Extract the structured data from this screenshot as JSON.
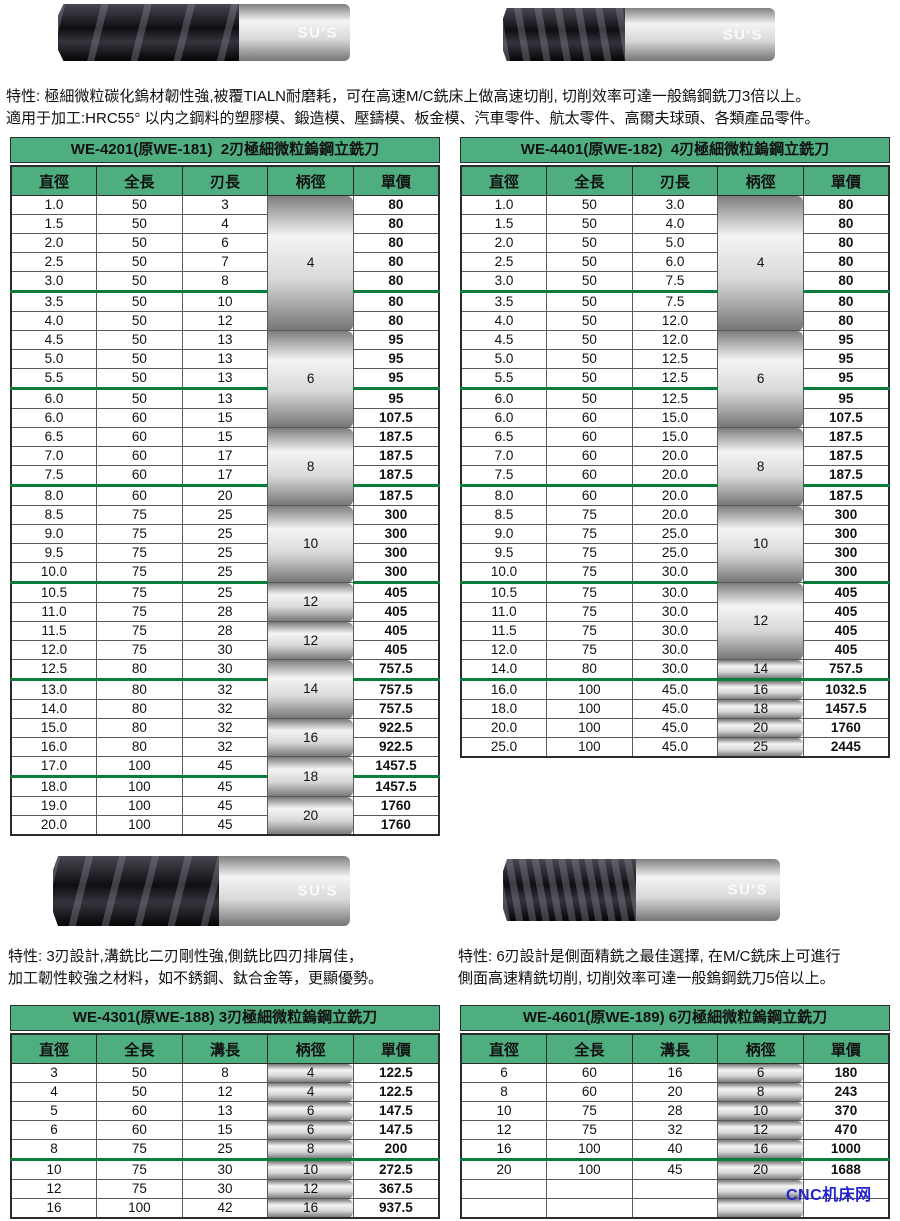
{
  "features": {
    "top": [
      "特性: 極細微粒碳化鎢材韌性強,被覆TIALN耐磨耗，可在高速M/C銑床上做高速切削, 切削效率可達一般鎢鋼銑刀3倍以上。",
      "適用于加工:HRC55° 以内之鋼料的塑膠模、鍛造模、壓鑄模、板金模、汽車零件、航太零件、高爾夫球頭、各類產品零件。"
    ],
    "three_flute": [
      "特性: 3刃設計,溝銑比二刃剛性強,側銑比四刃排屑佳，",
      "加工韌性較強之材料，如不銹鋼、鈦合金等，更顯優勢。"
    ],
    "six_flute": [
      "特性: 6刃設計是側面精銑之最佳選擇, 在M/C銑床上可進行",
      "側面高速精銑切削, 切削效率可達一般鎢鋼銑刀5倍以上。"
    ]
  },
  "images": [
    {
      "name": "2-flute-endmill",
      "watermark": "SU'S"
    },
    {
      "name": "4-flute-endmill",
      "watermark": "SU'S"
    },
    {
      "name": "3-flute-endmill",
      "watermark": "SU'S"
    },
    {
      "name": "6-flute-endmill",
      "watermark": "SU'S"
    }
  ],
  "colors": {
    "header_green": "#4fae80",
    "separator_green": "#0a7c3c",
    "logo_blue": "#2424cf"
  },
  "footer_logo": "CNC机床网",
  "tables": [
    {
      "title": "WE-4201(原WE-181)  2刃極細微粒鎢鋼立銑刀",
      "columns": [
        "直徑",
        "全長",
        "刃長",
        "柄徑",
        "單價"
      ],
      "rows": [
        {
          "cells": [
            "1.0",
            "50",
            "3"
          ],
          "shank": "4",
          "shank_span": 7,
          "price": "80"
        },
        {
          "cells": [
            "1.5",
            "50",
            "4"
          ],
          "price": "80"
        },
        {
          "cells": [
            "2.0",
            "50",
            "6"
          ],
          "price": "80"
        },
        {
          "cells": [
            "2.5",
            "50",
            "7"
          ],
          "price": "80"
        },
        {
          "cells": [
            "3.0",
            "50",
            "8"
          ],
          "price": "80",
          "sep": true
        },
        {
          "cells": [
            "3.5",
            "50",
            "10"
          ],
          "price": "80"
        },
        {
          "cells": [
            "4.0",
            "50",
            "12"
          ],
          "price": "80"
        },
        {
          "cells": [
            "4.5",
            "50",
            "13"
          ],
          "shank": "6",
          "shank_span": 5,
          "price": "95"
        },
        {
          "cells": [
            "5.0",
            "50",
            "13"
          ],
          "price": "95"
        },
        {
          "cells": [
            "5.5",
            "50",
            "13"
          ],
          "price": "95",
          "sep": true
        },
        {
          "cells": [
            "6.0",
            "50",
            "13"
          ],
          "price": "95"
        },
        {
          "cells": [
            "6.0",
            "60",
            "15"
          ],
          "price": "107.5"
        },
        {
          "cells": [
            "6.5",
            "60",
            "15"
          ],
          "shank": "8",
          "shank_span": 4,
          "price": "187.5"
        },
        {
          "cells": [
            "7.0",
            "60",
            "17"
          ],
          "price": "187.5"
        },
        {
          "cells": [
            "7.5",
            "60",
            "17"
          ],
          "price": "187.5",
          "sep": true
        },
        {
          "cells": [
            "8.0",
            "60",
            "20"
          ],
          "price": "187.5"
        },
        {
          "cells": [
            "8.5",
            "75",
            "25"
          ],
          "shank": "10",
          "shank_span": 4,
          "price": "300"
        },
        {
          "cells": [
            "9.0",
            "75",
            "25"
          ],
          "price": "300"
        },
        {
          "cells": [
            "9.5",
            "75",
            "25"
          ],
          "price": "300"
        },
        {
          "cells": [
            "10.0",
            "75",
            "25"
          ],
          "price": "300",
          "sep": true
        },
        {
          "cells": [
            "10.5",
            "75",
            "25"
          ],
          "shank": "12",
          "shank_span": 2,
          "price": "405"
        },
        {
          "cells": [
            "11.0",
            "75",
            "28"
          ],
          "price": "405"
        },
        {
          "cells": [
            "11.5",
            "75",
            "28"
          ],
          "shank": "12",
          "shank_span": 2,
          "price": "405"
        },
        {
          "cells": [
            "12.0",
            "75",
            "30"
          ],
          "price": "405"
        },
        {
          "cells": [
            "12.5",
            "80",
            "30"
          ],
          "shank": "14",
          "shank_span": 3,
          "price": "757.5",
          "sep": true
        },
        {
          "cells": [
            "13.0",
            "80",
            "32"
          ],
          "price": "757.5"
        },
        {
          "cells": [
            "14.0",
            "80",
            "32"
          ],
          "price": "757.5"
        },
        {
          "cells": [
            "15.0",
            "80",
            "32"
          ],
          "shank": "16",
          "shank_span": 2,
          "price": "922.5"
        },
        {
          "cells": [
            "16.0",
            "80",
            "32"
          ],
          "price": "922.5"
        },
        {
          "cells": [
            "17.0",
            "100",
            "45"
          ],
          "shank": "18",
          "shank_span": 2,
          "price": "1457.5",
          "sep": true
        },
        {
          "cells": [
            "18.0",
            "100",
            "45"
          ],
          "price": "1457.5"
        },
        {
          "cells": [
            "19.0",
            "100",
            "45"
          ],
          "shank": "20",
          "shank_span": 2,
          "price": "1760"
        },
        {
          "cells": [
            "20.0",
            "100",
            "45"
          ],
          "price": "1760"
        }
      ]
    },
    {
      "title": "WE-4401(原WE-182)  4刃極細微粒鎢鋼立銑刀",
      "columns": [
        "直徑",
        "全長",
        "刃長",
        "柄徑",
        "單價"
      ],
      "rows": [
        {
          "cells": [
            "1.0",
            "50",
            "3.0"
          ],
          "shank": "4",
          "shank_span": 7,
          "price": "80"
        },
        {
          "cells": [
            "1.5",
            "50",
            "4.0"
          ],
          "price": "80"
        },
        {
          "cells": [
            "2.0",
            "50",
            "5.0"
          ],
          "price": "80"
        },
        {
          "cells": [
            "2.5",
            "50",
            "6.0"
          ],
          "price": "80"
        },
        {
          "cells": [
            "3.0",
            "50",
            "7.5"
          ],
          "price": "80",
          "sep": true
        },
        {
          "cells": [
            "3.5",
            "50",
            "7.5"
          ],
          "price": "80"
        },
        {
          "cells": [
            "4.0",
            "50",
            "12.0"
          ],
          "price": "80"
        },
        {
          "cells": [
            "4.5",
            "50",
            "12.0"
          ],
          "shank": "6",
          "shank_span": 5,
          "price": "95"
        },
        {
          "cells": [
            "5.0",
            "50",
            "12.5"
          ],
          "price": "95"
        },
        {
          "cells": [
            "5.5",
            "50",
            "12.5"
          ],
          "price": "95",
          "sep": true
        },
        {
          "cells": [
            "6.0",
            "50",
            "12.5"
          ],
          "price": "95"
        },
        {
          "cells": [
            "6.0",
            "60",
            "15.0"
          ],
          "price": "107.5"
        },
        {
          "cells": [
            "6.5",
            "60",
            "15.0"
          ],
          "shank": "8",
          "shank_span": 4,
          "price": "187.5"
        },
        {
          "cells": [
            "7.0",
            "60",
            "20.0"
          ],
          "price": "187.5"
        },
        {
          "cells": [
            "7.5",
            "60",
            "20.0"
          ],
          "price": "187.5",
          "sep": true
        },
        {
          "cells": [
            "8.0",
            "60",
            "20.0"
          ],
          "price": "187.5"
        },
        {
          "cells": [
            "8.5",
            "75",
            "20.0"
          ],
          "shank": "10",
          "shank_span": 4,
          "price": "300"
        },
        {
          "cells": [
            "9.0",
            "75",
            "25.0"
          ],
          "price": "300"
        },
        {
          "cells": [
            "9.5",
            "75",
            "25.0"
          ],
          "price": "300"
        },
        {
          "cells": [
            "10.0",
            "75",
            "30.0"
          ],
          "price": "300",
          "sep": true
        },
        {
          "cells": [
            "10.5",
            "75",
            "30.0"
          ],
          "shank": "12",
          "shank_span": 4,
          "price": "405"
        },
        {
          "cells": [
            "11.0",
            "75",
            "30.0"
          ],
          "price": "405"
        },
        {
          "cells": [
            "11.5",
            "75",
            "30.0"
          ],
          "price": "405"
        },
        {
          "cells": [
            "12.0",
            "75",
            "30.0"
          ],
          "price": "405"
        },
        {
          "cells": [
            "14.0",
            "80",
            "30.0"
          ],
          "shank": "14",
          "shank_span": 1,
          "price": "757.5",
          "sep": true
        },
        {
          "cells": [
            "16.0",
            "100",
            "45.0"
          ],
          "shank": "16",
          "shank_span": 1,
          "price": "1032.5"
        },
        {
          "cells": [
            "18.0",
            "100",
            "45.0"
          ],
          "shank": "18",
          "shank_span": 1,
          "price": "1457.5"
        },
        {
          "cells": [
            "20.0",
            "100",
            "45.0"
          ],
          "shank": "20",
          "shank_span": 1,
          "price": "1760"
        },
        {
          "cells": [
            "25.0",
            "100",
            "45.0"
          ],
          "shank": "25",
          "shank_span": 1,
          "price": "2445"
        }
      ]
    },
    {
      "title": "WE-4301(原WE-188) 3刃極細微粒鎢鋼立銑刀",
      "columns": [
        "直徑",
        "全長",
        "溝長",
        "柄徑",
        "單價"
      ],
      "rows": [
        {
          "cells": [
            "3",
            "50",
            "8"
          ],
          "shank": "4",
          "shank_span": 1,
          "price": "122.5"
        },
        {
          "cells": [
            "4",
            "50",
            "12"
          ],
          "shank": "4",
          "shank_span": 1,
          "price": "122.5"
        },
        {
          "cells": [
            "5",
            "60",
            "13"
          ],
          "shank": "6",
          "shank_span": 1,
          "price": "147.5"
        },
        {
          "cells": [
            "6",
            "60",
            "15"
          ],
          "shank": "6",
          "shank_span": 1,
          "price": "147.5"
        },
        {
          "cells": [
            "8",
            "75",
            "25"
          ],
          "shank": "8",
          "shank_span": 1,
          "price": "200",
          "sep": true
        },
        {
          "cells": [
            "10",
            "75",
            "30"
          ],
          "shank": "10",
          "shank_span": 1,
          "price": "272.5"
        },
        {
          "cells": [
            "12",
            "75",
            "30"
          ],
          "shank": "12",
          "shank_span": 1,
          "price": "367.5"
        },
        {
          "cells": [
            "16",
            "100",
            "42"
          ],
          "shank": "16",
          "shank_span": 1,
          "price": "937.5"
        }
      ]
    },
    {
      "title": "WE-4601(原WE-189) 6刃極細微粒鎢鋼立銑刀",
      "columns": [
        "直徑",
        "全長",
        "溝長",
        "柄徑",
        "單價"
      ],
      "rows": [
        {
          "cells": [
            "6",
            "60",
            "16"
          ],
          "shank": "6",
          "shank_span": 1,
          "price": "180"
        },
        {
          "cells": [
            "8",
            "60",
            "20"
          ],
          "shank": "8",
          "shank_span": 1,
          "price": "243"
        },
        {
          "cells": [
            "10",
            "75",
            "28"
          ],
          "shank": "10",
          "shank_span": 1,
          "price": "370"
        },
        {
          "cells": [
            "12",
            "75",
            "32"
          ],
          "shank": "12",
          "shank_span": 1,
          "price": "470"
        },
        {
          "cells": [
            "16",
            "100",
            "40"
          ],
          "shank": "16",
          "shank_span": 1,
          "price": "1000",
          "sep": true
        },
        {
          "cells": [
            "20",
            "100",
            "45"
          ],
          "shank": "20",
          "shank_span": 1,
          "price": "1688"
        },
        {
          "cells": [
            "",
            "",
            ""
          ],
          "shank": "",
          "shank_span": 1,
          "price": ""
        },
        {
          "cells": [
            "",
            "",
            ""
          ],
          "shank": "",
          "shank_span": 1,
          "price": ""
        }
      ]
    }
  ]
}
